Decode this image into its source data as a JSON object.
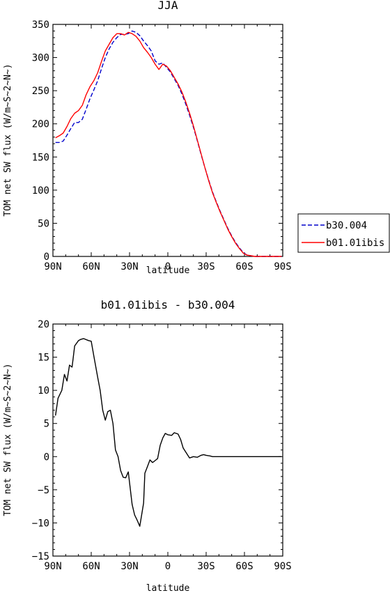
{
  "chart_data": [
    {
      "type": "line",
      "title": "JJA",
      "xlabel": "latitude",
      "ylabel": "TOM net SW flux (W/m~S~2~N~)",
      "xlim": [
        90,
        -90
      ],
      "ylim": [
        0,
        350
      ],
      "x_ticks": [
        90,
        60,
        30,
        0,
        -30,
        -60,
        -90
      ],
      "x_tick_labels": [
        "90N",
        "60N",
        "30N",
        "0",
        "30S",
        "60S",
        "90S"
      ],
      "y_ticks": [
        0,
        50,
        100,
        150,
        200,
        250,
        300,
        350
      ],
      "y_tick_labels": [
        "0",
        "50",
        "100",
        "150",
        "200",
        "250",
        "300",
        "350"
      ],
      "legend_position": "right",
      "series": [
        {
          "name": "b30.004",
          "color": "#0000cc",
          "dash": "dashed",
          "x": [
            88,
            85,
            82,
            79,
            76,
            73,
            70,
            67,
            64,
            61,
            58,
            55,
            52,
            49,
            46,
            43,
            40,
            37,
            34,
            31,
            28,
            25,
            22,
            19,
            16,
            13,
            10,
            7,
            4,
            1,
            -2,
            -5,
            -8,
            -11,
            -14,
            -17,
            -20,
            -23,
            -26,
            -29,
            -32,
            -35,
            -38,
            -41,
            -44,
            -47,
            -50,
            -53,
            -56,
            -59,
            -62,
            -65,
            -68,
            -71,
            -74,
            -77,
            -80,
            -83,
            -86,
            -89
          ],
          "y": [
            172,
            172,
            174,
            183,
            193,
            202,
            202,
            207,
            222,
            238,
            251,
            265,
            283,
            300,
            313,
            323,
            330,
            335,
            335,
            336,
            340,
            338,
            333,
            325,
            318,
            310,
            295,
            290,
            292,
            285,
            278,
            268,
            258,
            245,
            230,
            213,
            195,
            175,
            154,
            134,
            115,
            97,
            82,
            68,
            55,
            42,
            31,
            21,
            13,
            6,
            2,
            1,
            0,
            0,
            0,
            0,
            0,
            0,
            0,
            0
          ]
        },
        {
          "name": "b01.01ibis",
          "color": "#ff0000",
          "dash": "solid",
          "x": [
            88,
            85,
            82,
            79,
            76,
            73,
            70,
            67,
            64,
            61,
            58,
            55,
            52,
            49,
            46,
            43,
            40,
            37,
            34,
            31,
            28,
            25,
            22,
            19,
            16,
            13,
            10,
            7,
            4,
            1,
            -2,
            -5,
            -8,
            -11,
            -14,
            -17,
            -20,
            -23,
            -26,
            -29,
            -32,
            -35,
            -38,
            -41,
            -44,
            -47,
            -50,
            -53,
            -56,
            -59,
            -62,
            -65,
            -68,
            -71,
            -74,
            -77,
            -80,
            -83,
            -86,
            -89
          ],
          "y": [
            179,
            182,
            186,
            196,
            208,
            216,
            220,
            228,
            244,
            256,
            265,
            277,
            294,
            310,
            320,
            330,
            336,
            336,
            334,
            338,
            336,
            332,
            325,
            315,
            308,
            300,
            290,
            282,
            290,
            287,
            280,
            270,
            260,
            248,
            233,
            216,
            197,
            176,
            155,
            134,
            114,
            96,
            81,
            67,
            54,
            41,
            30,
            20,
            12,
            5,
            2,
            1,
            0,
            0,
            0,
            0,
            0,
            0,
            0,
            0
          ]
        }
      ]
    },
    {
      "type": "line",
      "title": "b01.01ibis - b30.004",
      "xlabel": "latitude",
      "ylabel": "TOM net SW flux (W/m~S~2~N~)",
      "xlim": [
        90,
        -90
      ],
      "ylim": [
        -15,
        20
      ],
      "x_ticks": [
        90,
        60,
        30,
        0,
        -30,
        -60,
        -90
      ],
      "x_tick_labels": [
        "90N",
        "60N",
        "30N",
        "0",
        "30S",
        "60S",
        "90S"
      ],
      "y_ticks": [
        -15,
        -10,
        -5,
        0,
        5,
        10,
        15,
        20
      ],
      "y_tick_labels": [
        "−15",
        "−10",
        "−5",
        "0",
        "5",
        "10",
        "15",
        "20"
      ],
      "series": [
        {
          "color": "#000000",
          "dash": "solid",
          "x": [
            88,
            86,
            83,
            81,
            79,
            77,
            75,
            73,
            70,
            68,
            66,
            62,
            60,
            58,
            55,
            53,
            51,
            49,
            47,
            45,
            43,
            41,
            39,
            37,
            35,
            33,
            31,
            28,
            26,
            24,
            22,
            19,
            18,
            16,
            14,
            12,
            10,
            8,
            6,
            4,
            2,
            0,
            -3,
            -5,
            -8,
            -10,
            -12,
            -15,
            -17,
            -20,
            -23,
            -26,
            -28,
            -30,
            -33,
            -35,
            -38,
            -41,
            -43,
            -46,
            -49,
            -53,
            -58,
            -61,
            -65,
            -70,
            -75,
            -80,
            -85,
            -89
          ],
          "y": [
            6.2,
            8.8,
            10.0,
            12.4,
            11.4,
            13.8,
            13.5,
            16.7,
            17.5,
            17.7,
            17.8,
            17.5,
            17.4,
            15.2,
            12.0,
            10.0,
            7.0,
            5.5,
            6.8,
            7.0,
            5.0,
            1.0,
            0.0,
            -2.1,
            -3.1,
            -3.2,
            -2.3,
            -7.2,
            -8.8,
            -9.6,
            -10.5,
            -7.0,
            -2.5,
            -1.5,
            -0.5,
            -0.9,
            -0.6,
            -0.3,
            1.7,
            2.8,
            3.5,
            3.3,
            3.2,
            3.6,
            3.4,
            2.6,
            1.3,
            0.4,
            -0.2,
            0.0,
            -0.1,
            0.2,
            0.3,
            0.2,
            0.1,
            0.0,
            0.0,
            0.0,
            0.0,
            0.0,
            0.0,
            0.0,
            0.0,
            0.0,
            0.0,
            0.0,
            0.0,
            0.0,
            0.0,
            0.0
          ]
        }
      ]
    }
  ]
}
